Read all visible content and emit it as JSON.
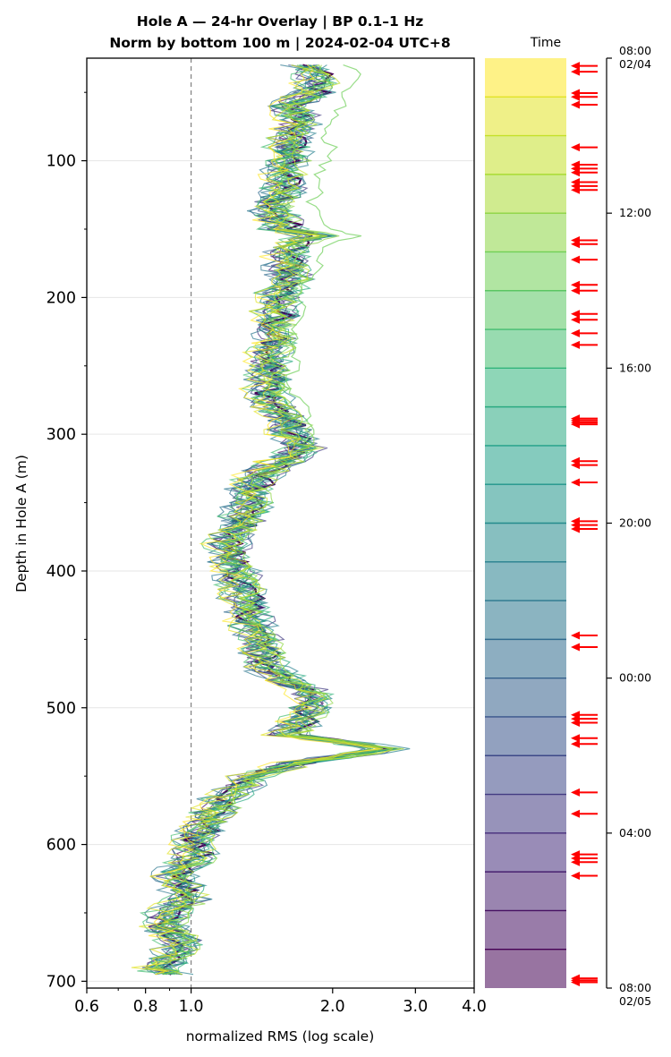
{
  "chart_data": {
    "type": "line",
    "title_line1": "Hole A — 24-hr Overlay  |  BP 0.1–1 Hz",
    "title_line2": "Norm by bottom 100 m  |  2024-02-04 UTC+8",
    "xlabel": "normalized RMS  (log scale)",
    "ylabel": "Depth in Hole A (m)",
    "x_scale": "log",
    "xlim": [
      0.6,
      4.0
    ],
    "ylim": [
      705,
      25
    ],
    "x_ticks": [
      0.6,
      0.8,
      1.0,
      2.0,
      3.0,
      4.0
    ],
    "x_tick_labels": [
      "0.6",
      "0.8",
      "1.0",
      "2.0",
      "3.0",
      "4.0"
    ],
    "y_ticks": [
      100,
      200,
      300,
      400,
      500,
      600,
      700
    ],
    "y_tick_labels": [
      "100",
      "200",
      "300",
      "400",
      "500",
      "600",
      "700"
    ],
    "reference_line_x": 1.0,
    "grid": "horizontal",
    "profile_depth": [
      30,
      40,
      50,
      60,
      70,
      80,
      90,
      100,
      110,
      120,
      130,
      140,
      150,
      155,
      160,
      170,
      180,
      190,
      200,
      210,
      220,
      230,
      240,
      250,
      260,
      270,
      280,
      290,
      300,
      310,
      320,
      330,
      340,
      350,
      360,
      370,
      380,
      390,
      400,
      410,
      420,
      430,
      440,
      450,
      460,
      470,
      480,
      490,
      500,
      510,
      520,
      530,
      540,
      550,
      560,
      570,
      580,
      590,
      600,
      610,
      620,
      630,
      640,
      650,
      660,
      670,
      680,
      690,
      695
    ],
    "profile_rms": [
      1.75,
      1.85,
      1.82,
      1.6,
      1.7,
      1.65,
      1.62,
      1.6,
      1.58,
      1.57,
      1.5,
      1.52,
      1.58,
      1.85,
      1.65,
      1.6,
      1.62,
      1.6,
      1.55,
      1.52,
      1.5,
      1.53,
      1.47,
      1.45,
      1.47,
      1.45,
      1.5,
      1.6,
      1.62,
      1.72,
      1.55,
      1.4,
      1.35,
      1.33,
      1.3,
      1.25,
      1.2,
      1.22,
      1.25,
      1.27,
      1.3,
      1.32,
      1.35,
      1.4,
      1.42,
      1.45,
      1.6,
      1.8,
      1.78,
      1.7,
      1.6,
      2.6,
      1.7,
      1.35,
      1.25,
      1.15,
      1.1,
      1.05,
      1.0,
      1.03,
      0.92,
      0.95,
      0.98,
      0.9,
      0.88,
      0.95,
      0.93,
      0.85,
      0.9
    ],
    "curve_count": 24,
    "outlier_curve": {
      "depth": [
        30,
        40,
        50,
        60,
        70,
        80,
        90,
        100,
        110,
        120,
        130,
        140,
        150,
        155,
        160,
        170,
        180,
        190,
        200,
        210,
        220,
        230,
        240,
        250,
        260,
        270,
        280,
        290,
        300,
        310
      ],
      "rms": [
        2.15,
        2.3,
        2.05,
        2.1,
        2.0,
        1.9,
        2.0,
        1.95,
        1.85,
        1.9,
        1.8,
        1.85,
        1.95,
        2.3,
        2.0,
        1.85,
        1.9,
        1.75,
        1.7,
        1.72,
        1.68,
        1.65,
        1.65,
        1.7,
        1.6,
        1.65,
        1.75,
        1.8,
        1.85,
        1.7
      ]
    },
    "colorbar": {
      "label": "Time",
      "bands": 24,
      "tick_labels": [
        "08:00\n02/04",
        "12:00",
        "16:00",
        "20:00",
        "00:00",
        "04:00",
        "08:00\n02/05"
      ],
      "tick_hours": [
        0,
        4,
        8,
        12,
        16,
        20,
        24
      ],
      "colormap": "viridis (reversed: yellow at top, purple at bottom)",
      "event_hours": [
        0.2,
        0.35,
        0.9,
        1.0,
        1.2,
        2.3,
        2.75,
        2.85,
        2.95,
        3.2,
        3.3,
        3.4,
        4.7,
        4.8,
        5.2,
        5.85,
        6.0,
        6.6,
        6.75,
        7.1,
        7.4,
        9.3,
        9.35,
        9.4,
        9.45,
        10.4,
        10.5,
        10.95,
        11.95,
        12.05,
        12.15,
        14.9,
        15.2,
        16.95,
        17.05,
        17.15,
        17.55,
        17.7,
        18.95,
        19.5,
        20.55,
        20.65,
        20.75,
        21.1,
        23.75,
        23.8,
        23.85
      ],
      "event_color": "#ff0000"
    },
    "colors": {
      "viridis_top": "#fde725",
      "viridis_bottom": "#440154",
      "reference_line": "#808080",
      "arrows": "#ff0000"
    }
  }
}
